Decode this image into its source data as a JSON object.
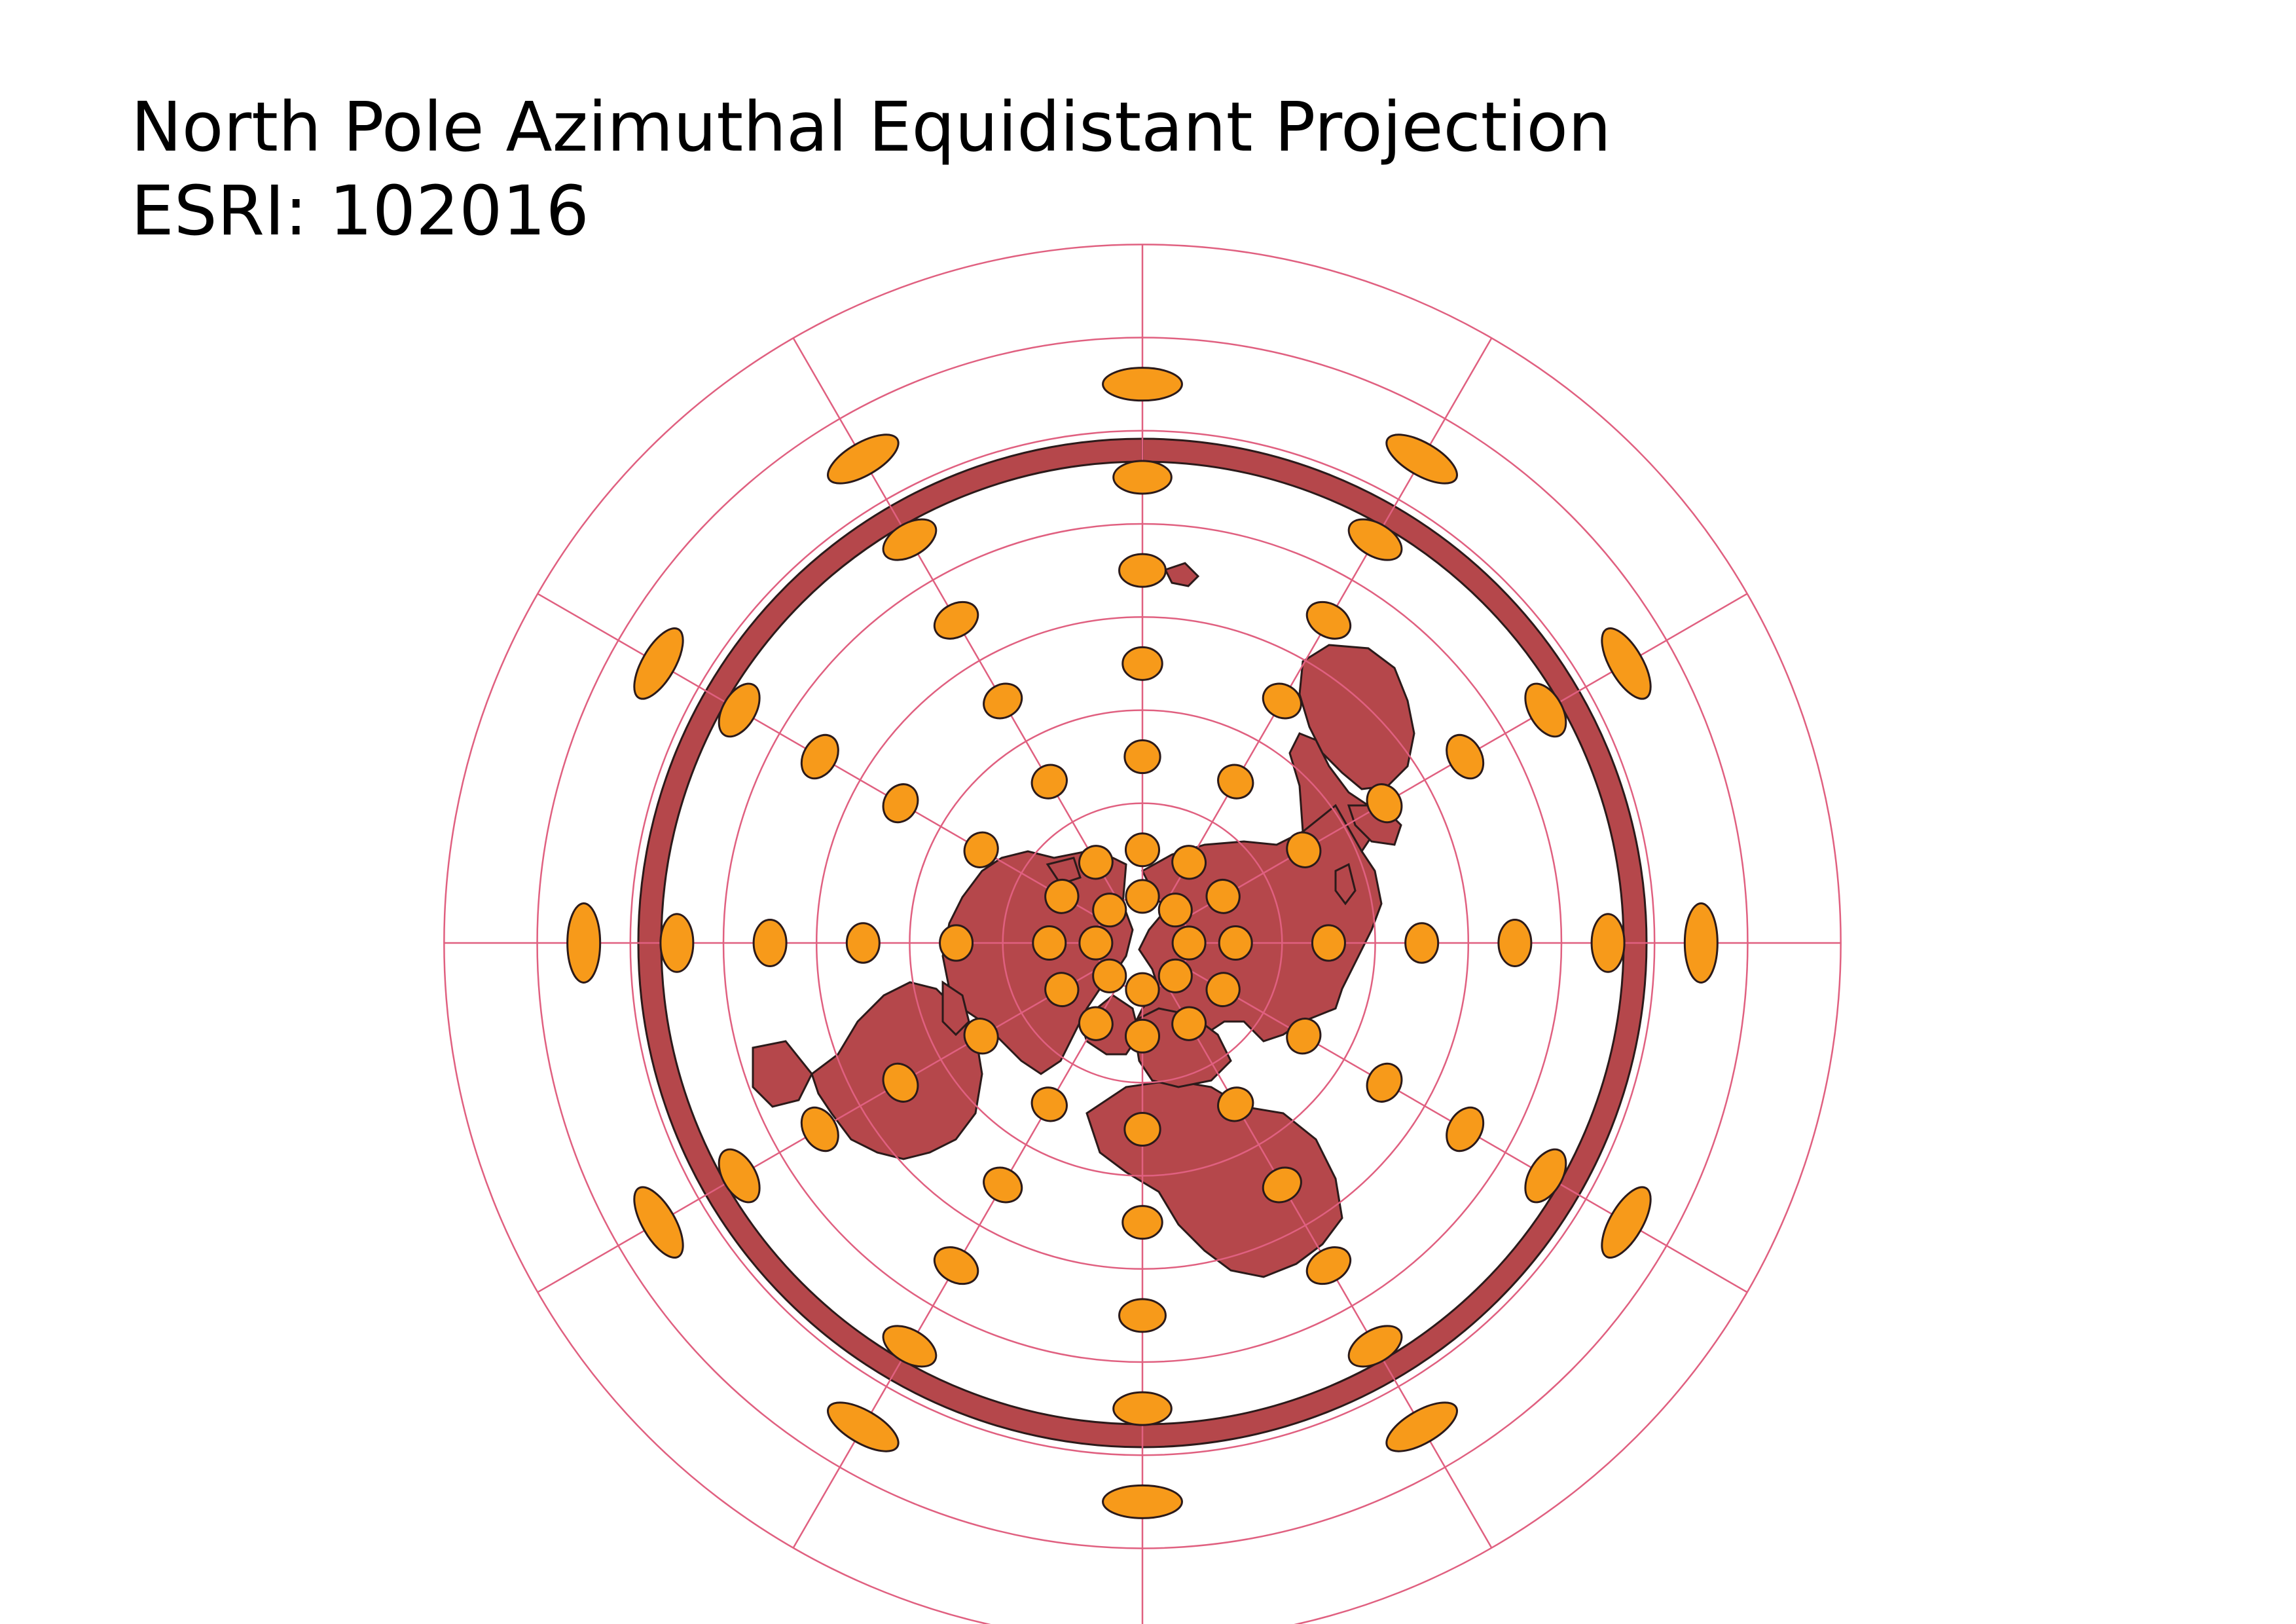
{
  "title": "North Pole Azimuthal Equidistant Projection",
  "subtitle": "ESRI: 102016",
  "colors": {
    "background": "#ffffff",
    "land": "#b5474b",
    "outline": "#2b1a1a",
    "ellipse_fill": "#f79a1a",
    "graticule": "#e06080",
    "ocean": "#ffffff"
  },
  "map": {
    "projection": "North Pole Azimuthal Equidistant",
    "graticule_parallels_deg": [
      80,
      60,
      40,
      20,
      0,
      -20,
      -40,
      -60
    ],
    "graticule_meridian_step_deg": 30,
    "tissot_indicatrices": "shown"
  }
}
